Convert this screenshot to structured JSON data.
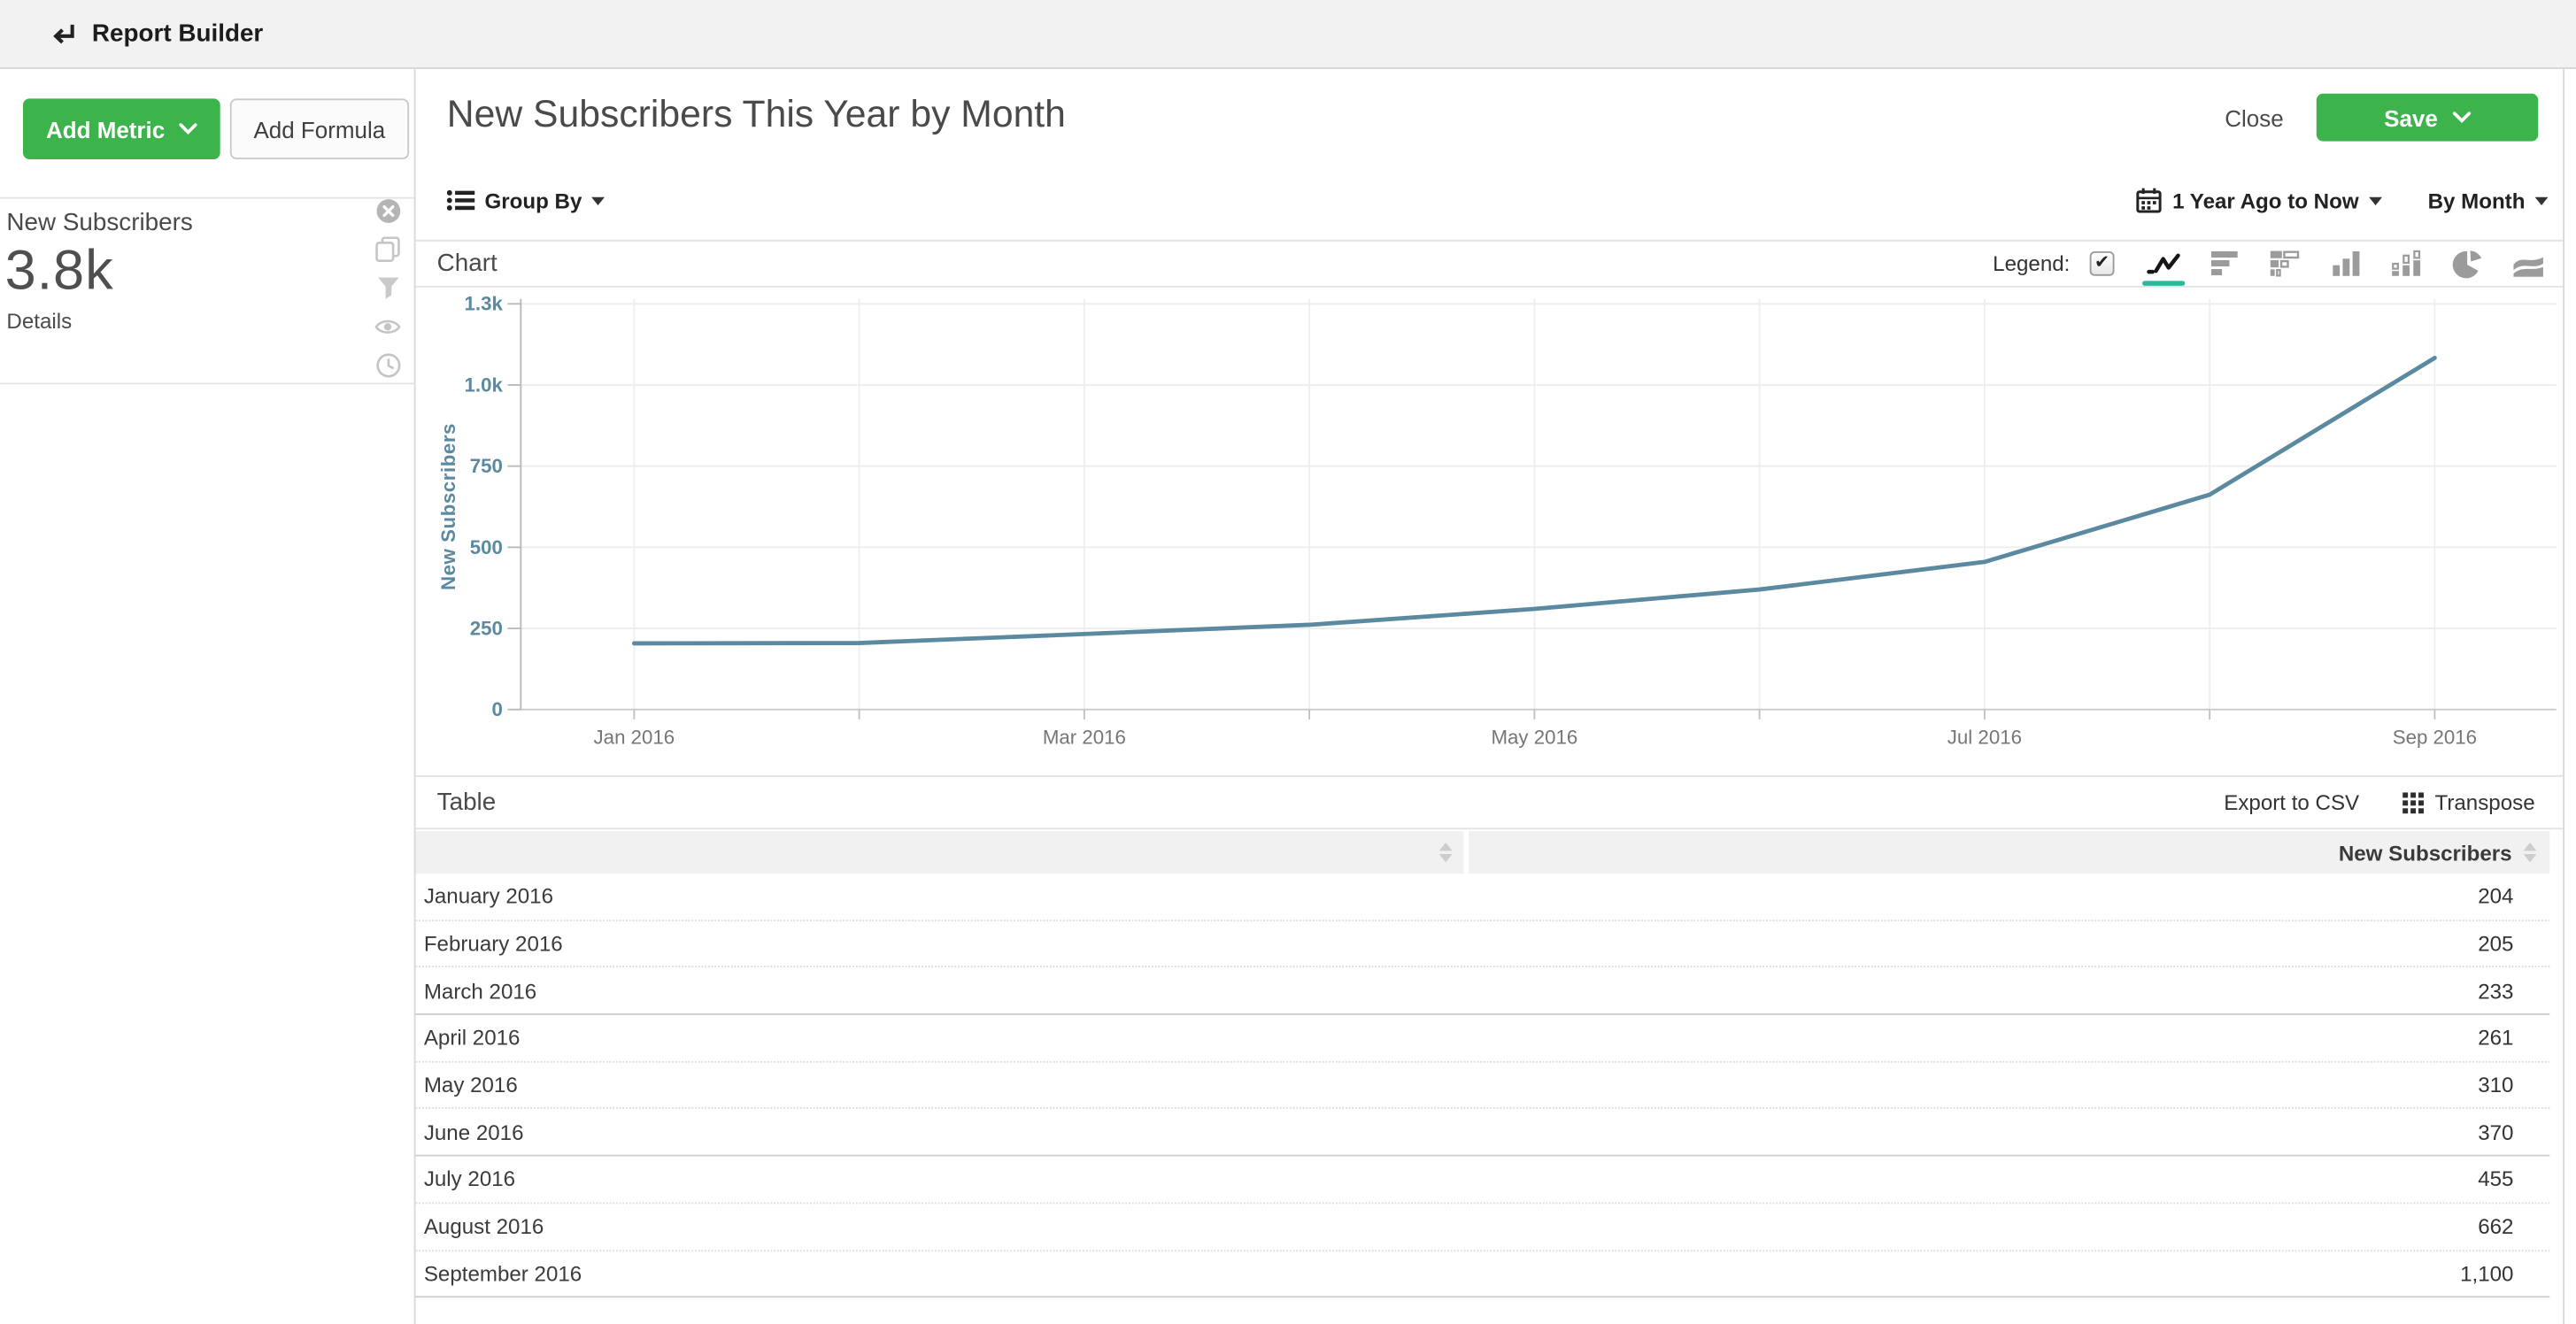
{
  "topbar": {
    "title": "Report Builder"
  },
  "sidebar": {
    "add_metric": "Add Metric",
    "add_formula": "Add Formula",
    "metric": {
      "name": "New Subscribers",
      "value": "3.8k",
      "details": "Details"
    }
  },
  "header": {
    "title": "New Subscribers This Year by Month",
    "close": "Close",
    "save": "Save"
  },
  "controls": {
    "group_by": "Group By",
    "date_range": "1 Year Ago to Now",
    "interval": "By Month"
  },
  "chart_section": {
    "title": "Chart",
    "legend_label": "Legend:",
    "legend_checked": true,
    "chart_types": [
      "line",
      "bar-horizontal",
      "bar-horizontal-stacked",
      "bar-vertical",
      "bar-vertical-stacked",
      "pie",
      "area"
    ],
    "selected_type": "line"
  },
  "table_section": {
    "title": "Table",
    "export": "Export to CSV",
    "transpose": "Transpose",
    "col1_header": "",
    "col2_header": "New Subscribers",
    "rows": [
      {
        "label": "January 2016",
        "value": "204"
      },
      {
        "label": "February 2016",
        "value": "205"
      },
      {
        "label": "March 2016",
        "value": "233"
      },
      {
        "label": "April 2016",
        "value": "261"
      },
      {
        "label": "May 2016",
        "value": "310"
      },
      {
        "label": "June 2016",
        "value": "370"
      },
      {
        "label": "July 2016",
        "value": "455"
      },
      {
        "label": "August 2016",
        "value": "662"
      },
      {
        "label": "September 2016",
        "value": "1,100"
      }
    ]
  },
  "chart_data": {
    "type": "line",
    "x": [
      "January 2016",
      "February 2016",
      "March 2016",
      "April 2016",
      "May 2016",
      "June 2016",
      "July 2016",
      "August 2016",
      "September 2016"
    ],
    "series": [
      {
        "name": "New Subscribers",
        "values": [
          204,
          205,
          233,
          261,
          310,
          370,
          455,
          662,
          1100
        ],
        "color": "#5b8aa0"
      }
    ],
    "title": "",
    "xlabel": "",
    "ylabel": "New Subscribers",
    "ylim": [
      0,
      1300
    ],
    "yticks": [
      0,
      250,
      500,
      750,
      1000,
      1300
    ],
    "ytick_labels": [
      "0",
      "250",
      "500",
      "750",
      "1.0k",
      "1.3k"
    ],
    "xtick_labels": [
      "Jan 2016",
      "",
      "Mar 2016",
      "",
      "May 2016",
      "",
      "Jul 2016",
      "",
      "Sep 2016"
    ],
    "grid": true,
    "legend_position": "none"
  },
  "colors": {
    "accent_green": "#3cb44b",
    "line": "#5b8aa0",
    "axis_label": "#5b8aa0",
    "selected_underline": "#2bb999"
  }
}
